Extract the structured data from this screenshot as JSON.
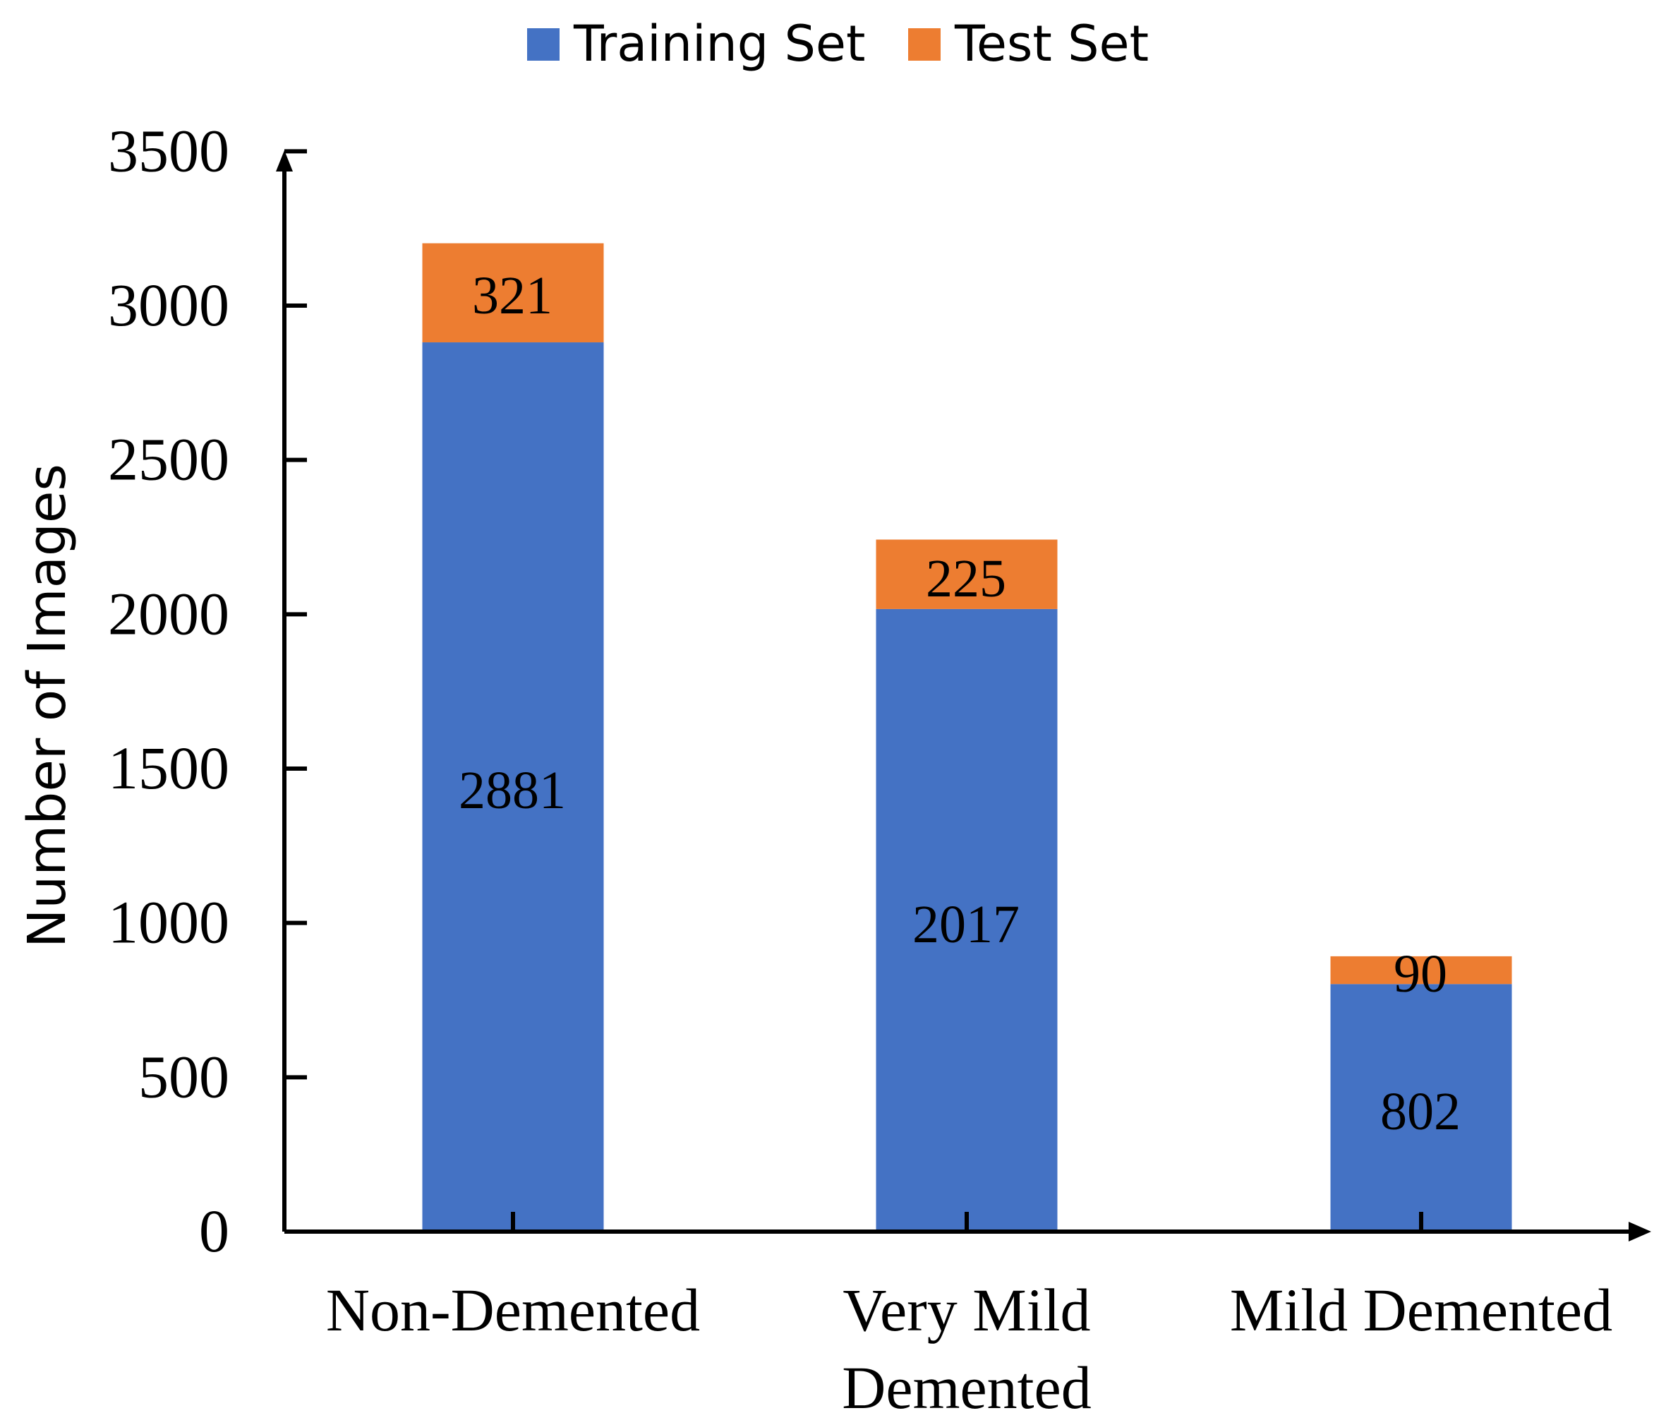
{
  "chart_data": {
    "type": "bar",
    "stacked": true,
    "categories": [
      "Non-Demented",
      "Very Mild Demented",
      "Mild Demented"
    ],
    "category_lines": [
      [
        "Non-Demented"
      ],
      [
        "Very Mild",
        "Demented"
      ],
      [
        "Mild Demented"
      ]
    ],
    "series": [
      {
        "name": "Training Set",
        "values": [
          2881,
          2017,
          802
        ],
        "color": "#4472c4"
      },
      {
        "name": "Test Set",
        "values": [
          321,
          225,
          90
        ],
        "color": "#ed7d31"
      }
    ],
    "xlabel": "",
    "ylabel": "Number of Images",
    "ylim": [
      0,
      3500
    ],
    "yticks": [
      0,
      500,
      1000,
      1500,
      2000,
      2500,
      3000,
      3500
    ],
    "grid": false,
    "legend": "top-center"
  }
}
